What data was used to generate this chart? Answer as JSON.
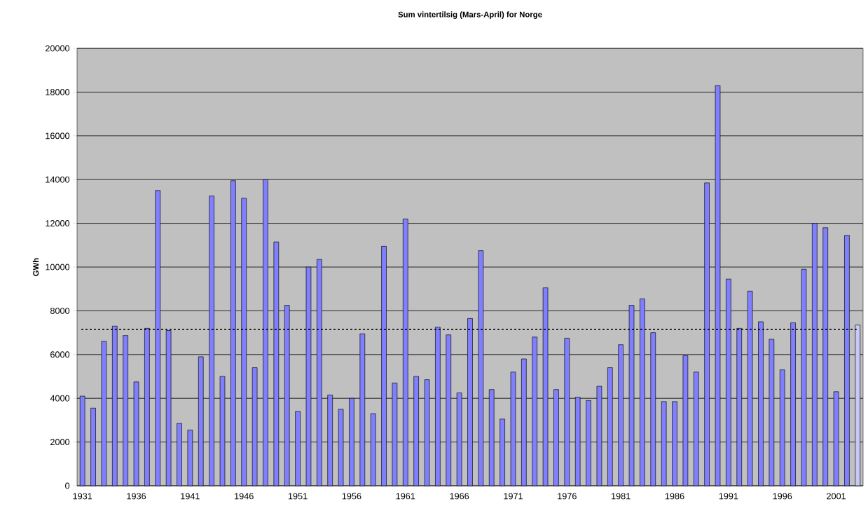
{
  "chart_data": {
    "type": "bar",
    "title": "Sum vintertilsig (Mars-April) for Norge",
    "ylabel": "GWh",
    "categories": [
      "1931",
      null,
      null,
      null,
      null,
      "1936",
      null,
      null,
      null,
      null,
      "1941",
      null,
      null,
      null,
      null,
      "1946",
      null,
      null,
      null,
      null,
      "1951",
      null,
      null,
      null,
      null,
      "1956",
      null,
      null,
      null,
      null,
      "1961",
      null,
      null,
      null,
      null,
      "1966",
      null,
      null,
      null,
      null,
      "1971",
      null,
      null,
      null,
      null,
      "1976",
      null,
      null,
      null,
      null,
      "1981",
      null,
      null,
      null,
      null,
      "1986",
      null,
      null,
      null,
      null,
      "1991",
      null,
      null,
      null,
      null,
      "1996",
      null,
      null,
      null,
      null,
      "2001",
      null,
      null
    ],
    "values": [
      4100,
      3550,
      6600,
      7300,
      6870,
      4750,
      7200,
      13500,
      7100,
      2850,
      2550,
      5900,
      13250,
      5000,
      13950,
      13150,
      5400,
      14000,
      11150,
      8250,
      3400,
      10000,
      10350,
      4150,
      3500,
      4000,
      6950,
      3300,
      10950,
      4700,
      12200,
      5000,
      4850,
      7250,
      6900,
      4250,
      7650,
      10750,
      4400,
      3050,
      5200,
      5800,
      6800,
      9050,
      4400,
      6750,
      4050,
      3900,
      4550,
      5400,
      6450,
      8250,
      8550,
      7000,
      3850,
      3850,
      5950,
      5200,
      13850,
      18300,
      9450,
      7200,
      8900,
      7500,
      6700,
      5300,
      7450,
      9900,
      12000,
      11800,
      4300,
      11450,
      7350
    ],
    "colors": [
      "#8080ff",
      "#8080ff",
      "#8080ff",
      "#8080ff",
      "#8080ff",
      "#8080ff",
      "#8080ff",
      "#8080ff",
      "#8080ff",
      "#8080ff",
      "#8080ff",
      "#8080ff",
      "#8080ff",
      "#8080ff",
      "#8080ff",
      "#8080ff",
      "#8080ff",
      "#8080ff",
      "#8080ff",
      "#8080ff",
      "#8080ff",
      "#8080ff",
      "#8080ff",
      "#8080ff",
      "#8080ff",
      "#8080ff",
      "#8080ff",
      "#8080ff",
      "#8080ff",
      "#8080ff",
      "#8080ff",
      "#8080ff",
      "#8080ff",
      "#8080ff",
      "#8080ff",
      "#8080ff",
      "#8080ff",
      "#8080ff",
      "#8080ff",
      "#8080ff",
      "#8080ff",
      "#8080ff",
      "#8080ff",
      "#8080ff",
      "#8080ff",
      "#8080ff",
      "#8080ff",
      "#8080ff",
      "#8080ff",
      "#8080ff",
      "#8080ff",
      "#8080ff",
      "#8080ff",
      "#8080ff",
      "#8080ff",
      "#8080ff",
      "#8080ff",
      "#8080ff",
      "#8080ff",
      "#8080ff",
      "#8080ff",
      "#8080ff",
      "#8080ff",
      "#8080ff",
      "#8080ff",
      "#8080ff",
      "#8080ff",
      "#8080ff",
      "#8080ff",
      "#8080ff",
      "#8080ff",
      "#8080ff",
      "#c8c8f4"
    ],
    "ylim": [
      0,
      20000
    ],
    "yticks": [
      0,
      2000,
      4000,
      6000,
      8000,
      10000,
      12000,
      14000,
      16000,
      18000,
      20000
    ],
    "grid": "y",
    "ref_lines": [
      {
        "axis": "y",
        "value": 7150,
        "color": "#000000",
        "line_style": "dotted"
      }
    ]
  }
}
